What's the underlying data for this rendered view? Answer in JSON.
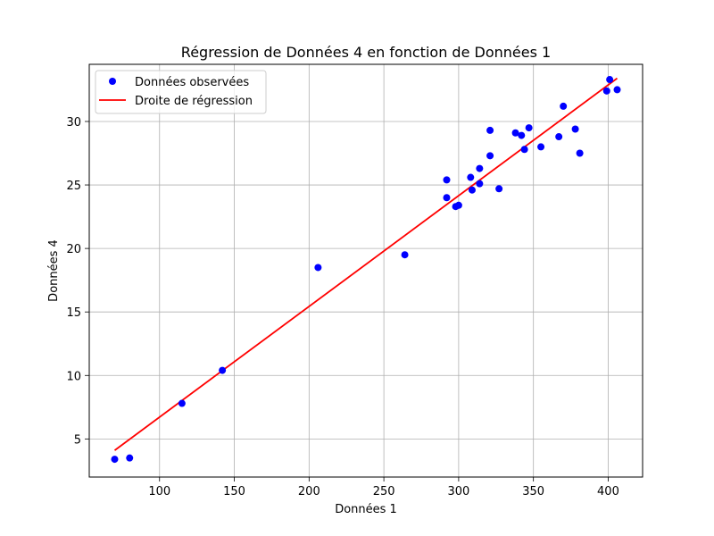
{
  "chart_data": {
    "type": "scatter",
    "title": "Régression de Données 4 en fonction de Données 1",
    "xlabel": "Données 1",
    "ylabel": "Données 4",
    "xlim": [
      53,
      423
    ],
    "ylim": [
      2.0,
      34.5
    ],
    "xticks": [
      100,
      150,
      200,
      250,
      300,
      350,
      400
    ],
    "yticks": [
      5,
      10,
      15,
      20,
      25,
      30
    ],
    "grid": true,
    "legend_position": "upper-left",
    "series": [
      {
        "name": "Données observées",
        "kind": "scatter",
        "color": "#0000ff",
        "points": [
          [
            70,
            3.4
          ],
          [
            80,
            3.5
          ],
          [
            115,
            7.8
          ],
          [
            142,
            10.4
          ],
          [
            206,
            18.5
          ],
          [
            264,
            19.5
          ],
          [
            292,
            25.4
          ],
          [
            292,
            24.0
          ],
          [
            298,
            23.3
          ],
          [
            300,
            23.4
          ],
          [
            308,
            25.6
          ],
          [
            309,
            24.6
          ],
          [
            314,
            26.3
          ],
          [
            314,
            25.1
          ],
          [
            321,
            29.3
          ],
          [
            321,
            27.3
          ],
          [
            327,
            24.7
          ],
          [
            338,
            29.1
          ],
          [
            342,
            28.9
          ],
          [
            344,
            27.8
          ],
          [
            347,
            29.5
          ],
          [
            355,
            28.0
          ],
          [
            367,
            28.8
          ],
          [
            370,
            31.2
          ],
          [
            378,
            29.4
          ],
          [
            381,
            27.5
          ],
          [
            399,
            32.4
          ],
          [
            401,
            33.3
          ],
          [
            406,
            32.5
          ]
        ]
      },
      {
        "name": "Droite de régression",
        "kind": "line",
        "color": "#ff0000",
        "points": [
          [
            70,
            4.1
          ],
          [
            406,
            33.4
          ]
        ]
      }
    ]
  }
}
